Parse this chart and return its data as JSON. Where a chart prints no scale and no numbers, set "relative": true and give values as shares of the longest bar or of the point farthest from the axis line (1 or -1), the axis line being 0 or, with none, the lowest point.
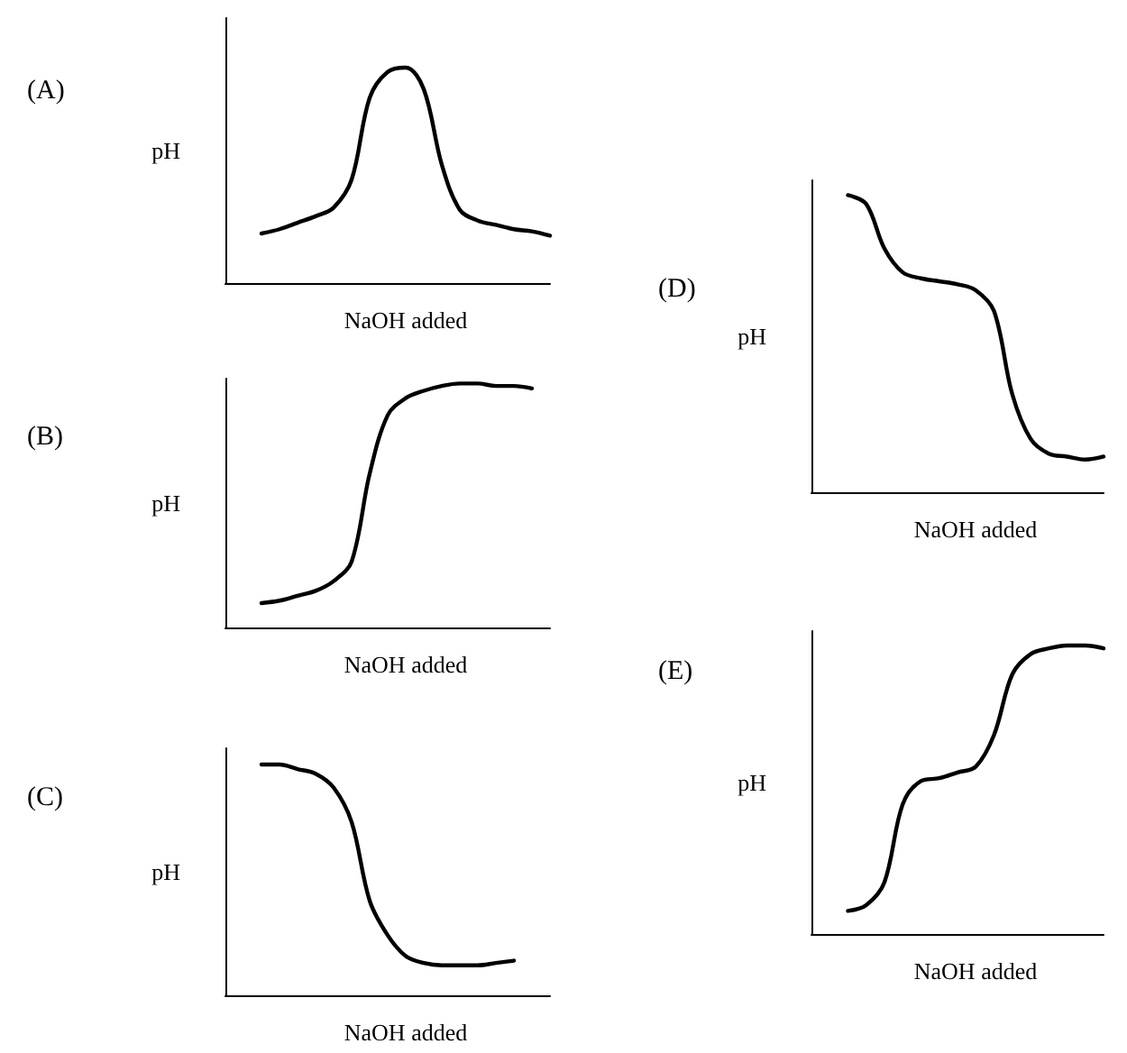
{
  "chart_data": [
    {
      "type": "line",
      "title": "(A)",
      "ylabel": "pH",
      "xlabel": "NaOH added",
      "relative": true,
      "tick_labels": false,
      "marker": "none",
      "color": "#000000",
      "categories": [
        null,
        null,
        null,
        null,
        null,
        null,
        null,
        null,
        null,
        null,
        null,
        null,
        null,
        null,
        null,
        null,
        null,
        null,
        null
      ],
      "values": [
        null,
        null,
        0.23,
        0.25,
        0.28,
        0.31,
        0.35,
        0.48,
        0.86,
        0.98,
        1,
        0.9,
        0.55,
        0.34,
        0.29,
        0.27,
        0.25,
        0.24,
        0.22
      ]
    },
    {
      "type": "line",
      "title": "(B)",
      "ylabel": "pH",
      "xlabel": "NaOH added",
      "relative": true,
      "tick_labels": false,
      "marker": "none",
      "color": "#000000",
      "categories": [
        null,
        null,
        null,
        null,
        null,
        null,
        null,
        null,
        null,
        null,
        null,
        null,
        null,
        null,
        null,
        null,
        null,
        null,
        null
      ],
      "values": [
        null,
        null,
        0.1,
        0.11,
        0.13,
        0.15,
        0.19,
        0.27,
        0.63,
        0.87,
        0.94,
        0.97,
        0.99,
        1,
        1,
        0.99,
        0.99,
        0.98,
        null
      ]
    },
    {
      "type": "line",
      "title": "(C)",
      "ylabel": "pH",
      "xlabel": "NaOH added",
      "relative": true,
      "tick_labels": false,
      "marker": "none",
      "color": "#000000",
      "categories": [
        null,
        null,
        null,
        null,
        null,
        null,
        null,
        null,
        null,
        null,
        null,
        null,
        null,
        null,
        null,
        null,
        null,
        null,
        null
      ],
      "values": [
        null,
        null,
        1,
        1,
        0.98,
        0.96,
        0.9,
        0.75,
        0.41,
        0.26,
        0.17,
        0.14,
        0.13,
        0.13,
        0.13,
        0.14,
        0.15,
        null,
        null
      ]
    },
    {
      "type": "line",
      "title": "(D)",
      "ylabel": "pH",
      "xlabel": "NaOH added",
      "relative": true,
      "tick_labels": false,
      "marker": "none",
      "color": "#000000",
      "categories": [
        null,
        null,
        null,
        null,
        null,
        null,
        null,
        null,
        null,
        null,
        null,
        null,
        null,
        null,
        null,
        null,
        null
      ],
      "values": [
        null,
        null,
        1,
        0.97,
        0.82,
        0.74,
        0.72,
        0.71,
        0.7,
        0.68,
        0.61,
        0.33,
        0.18,
        0.13,
        0.12,
        0.11,
        0.12
      ]
    },
    {
      "type": "line",
      "title": "(E)",
      "ylabel": "pH",
      "xlabel": "NaOH added",
      "relative": true,
      "tick_labels": false,
      "marker": "none",
      "color": "#000000",
      "categories": [
        null,
        null,
        null,
        null,
        null,
        null,
        null,
        null,
        null,
        null,
        null,
        null,
        null,
        null,
        null,
        null,
        null
      ],
      "values": [
        null,
        null,
        0.08,
        0.1,
        0.18,
        0.45,
        0.53,
        0.54,
        0.56,
        0.58,
        0.69,
        0.9,
        0.97,
        0.99,
        1,
        1,
        0.99
      ]
    }
  ]
}
